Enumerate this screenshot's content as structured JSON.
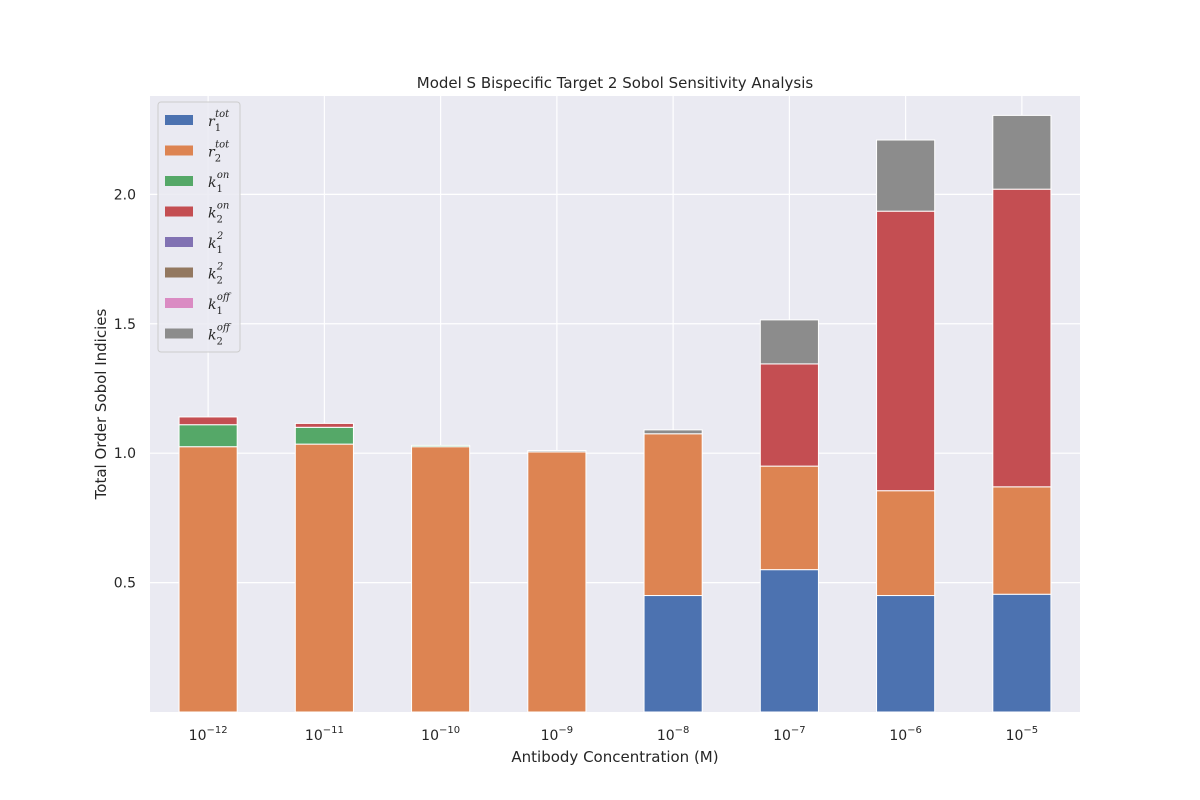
{
  "chart_data": {
    "type": "bar",
    "stacked": true,
    "title": "Model S Bispecific Target 2 Sobol Sensitivity Analysis",
    "xlabel": "Antibody Concentration (M)",
    "ylabel": "Total Order Sobol Indicies",
    "categories": [
      "10^-12",
      "10^-11",
      "10^-10",
      "10^-9",
      "10^-8",
      "10^-7",
      "10^-6",
      "10^-5"
    ],
    "category_labels": [
      {
        "base": "10",
        "exp": "−12"
      },
      {
        "base": "10",
        "exp": "−11"
      },
      {
        "base": "10",
        "exp": "−10"
      },
      {
        "base": "10",
        "exp": "−9"
      },
      {
        "base": "10",
        "exp": "−8"
      },
      {
        "base": "10",
        "exp": "−7"
      },
      {
        "base": "10",
        "exp": "−6"
      },
      {
        "base": "10",
        "exp": "−5"
      }
    ],
    "yticks": [
      {
        "value": 0.5,
        "label": "0.5"
      },
      {
        "value": 1.0,
        "label": "1.0"
      },
      {
        "value": 1.5,
        "label": "1.5"
      },
      {
        "value": 2.0,
        "label": "2.0"
      }
    ],
    "ylim": [
      0.0,
      2.38
    ],
    "grid": true,
    "legend_position": "top-left",
    "series": [
      {
        "name": "r1_tot",
        "legend": {
          "main": "r",
          "sub": "1",
          "sup": "tot"
        },
        "color": "#4c72b0",
        "values": [
          0.0,
          0.0,
          0.0,
          0.0,
          0.45,
          0.55,
          0.45,
          0.455
        ]
      },
      {
        "name": "r2_tot",
        "legend": {
          "main": "r",
          "sub": "2",
          "sup": "tot"
        },
        "color": "#dd8452",
        "values": [
          1.025,
          1.035,
          1.025,
          1.005,
          0.625,
          0.4,
          0.405,
          0.415
        ]
      },
      {
        "name": "k1_on",
        "legend": {
          "main": "k",
          "sub": "1",
          "sup": "on"
        },
        "color": "#55a868",
        "values": [
          0.085,
          0.065,
          0.005,
          0.0,
          0.0,
          0.0,
          0.0,
          0.0
        ]
      },
      {
        "name": "k2_on",
        "legend": {
          "main": "k",
          "sub": "2",
          "sup": "on"
        },
        "color": "#c44e52",
        "values": [
          0.03,
          0.015,
          0.0,
          0.0,
          0.0,
          0.395,
          1.08,
          1.15
        ]
      },
      {
        "name": "k1_2",
        "legend": {
          "main": "k",
          "sub": "1",
          "sup": "2"
        },
        "color": "#8172b3",
        "values": [
          0.0,
          0.0,
          0.0,
          0.0,
          0.0,
          0.0,
          0.0,
          0.0
        ]
      },
      {
        "name": "k2_2",
        "legend": {
          "main": "k",
          "sub": "2",
          "sup": "2"
        },
        "color": "#937860",
        "values": [
          0.0,
          0.0,
          0.0,
          0.0,
          0.0,
          0.0,
          0.0,
          0.0
        ]
      },
      {
        "name": "k1_off",
        "legend": {
          "main": "k",
          "sub": "1",
          "sup": "off"
        },
        "color": "#da8bc3",
        "values": [
          0.0,
          0.0,
          0.0,
          0.0,
          0.0,
          0.0,
          0.0,
          0.0
        ]
      },
      {
        "name": "k2_off",
        "legend": {
          "main": "k",
          "sub": "2",
          "sup": "off"
        },
        "color": "#8c8c8c",
        "values": [
          0.0,
          0.0,
          0.0,
          0.005,
          0.015,
          0.17,
          0.275,
          0.285
        ]
      }
    ],
    "colors": {
      "plot_background": "#eaeaf2",
      "grid": "#ffffff",
      "bar_edge": "#ffffff"
    }
  }
}
